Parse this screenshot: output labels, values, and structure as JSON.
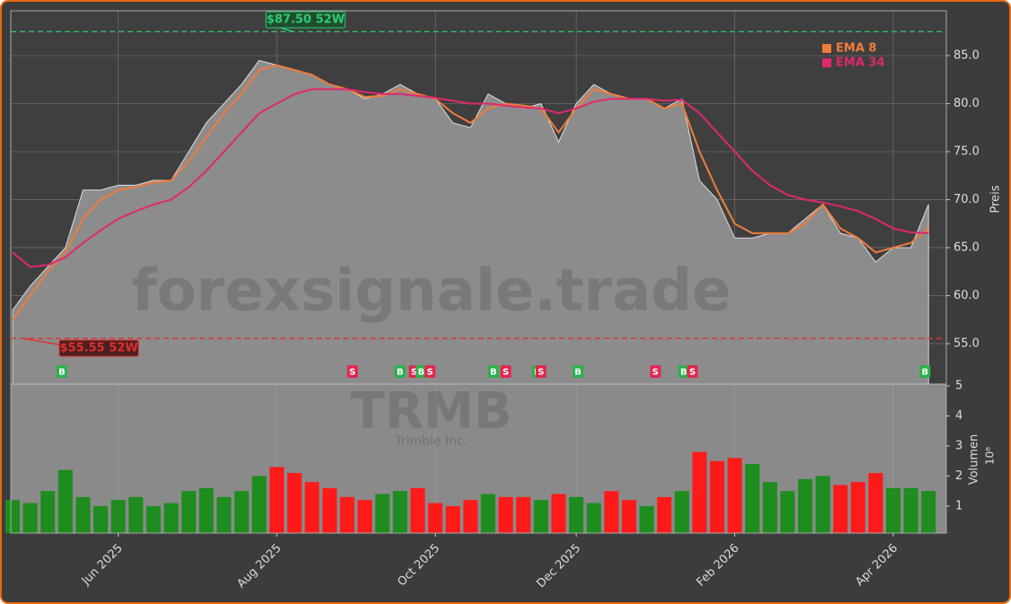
{
  "chart_data": {
    "type": "price-volume",
    "watermark": "forexsignale.trade",
    "ticker": "TRMB",
    "company": "Trimble Inc.",
    "categories": [
      null,
      null,
      null,
      null,
      null,
      null,
      "Jun 2025",
      null,
      null,
      null,
      null,
      null,
      null,
      null,
      null,
      "Aug 2025",
      null,
      null,
      null,
      null,
      null,
      null,
      null,
      null,
      "Oct 2025",
      null,
      null,
      null,
      null,
      null,
      null,
      null,
      "Dec 2025",
      null,
      null,
      null,
      null,
      null,
      null,
      null,
      null,
      "Feb 2026",
      null,
      null,
      null,
      null,
      null,
      null,
      null,
      null,
      "Apr 2026",
      null,
      null
    ],
    "series": [
      {
        "name": "Preis",
        "color": "#8c8c8c",
        "values": [
          58.5,
          61,
          63,
          65,
          71,
          71,
          71.5,
          71.5,
          72,
          72,
          75,
          78,
          80,
          82,
          84.5,
          84,
          83.5,
          83,
          82,
          81.5,
          80.5,
          81,
          82,
          81,
          80.5,
          78,
          77.5,
          81,
          80,
          79.5,
          80,
          76,
          80,
          82,
          81,
          80.5,
          80.5,
          79.5,
          80.5,
          72,
          70,
          66,
          66,
          66.5,
          66.5,
          68,
          69.5,
          66.5,
          66,
          63.5,
          65,
          65,
          69.5
        ]
      },
      {
        "name": "EMA 8",
        "color": "#f07c3c",
        "values": [
          57.5,
          60,
          62.5,
          64.5,
          68,
          70,
          71,
          71.3,
          71.8,
          72,
          74,
          76.5,
          79,
          81,
          83.5,
          84,
          83.5,
          83,
          82,
          81.5,
          80.7,
          80.8,
          81.5,
          81,
          80.5,
          79,
          78,
          79.5,
          80,
          79.8,
          79.5,
          77,
          79.5,
          81.5,
          81,
          80.5,
          80.5,
          79.5,
          80,
          75,
          71,
          67.5,
          66.5,
          66.5,
          66.5,
          67.5,
          69.5,
          67,
          66,
          64.5,
          65,
          65.5,
          67
        ]
      },
      {
        "name": "EMA 34",
        "color": "#e0286e",
        "values": [
          64.5,
          63,
          63.2,
          64,
          65.5,
          66.8,
          68,
          68.8,
          69.5,
          70,
          71.3,
          73,
          75,
          77,
          79,
          80,
          81,
          81.5,
          81.5,
          81.5,
          81.2,
          81,
          81,
          80.8,
          80.6,
          80.3,
          80,
          80,
          79.8,
          79.6,
          79.5,
          79,
          79.5,
          80.2,
          80.5,
          80.5,
          80.5,
          80.3,
          80.4,
          79,
          77,
          75,
          73,
          71.5,
          70.5,
          70,
          69.7,
          69.3,
          68.8,
          68,
          67,
          66.6,
          66.5
        ]
      }
    ],
    "volume": {
      "values": [
        1.2,
        1.1,
        1.5,
        2.2,
        1.3,
        1.0,
        1.2,
        1.3,
        1.0,
        1.1,
        1.5,
        1.6,
        1.3,
        1.5,
        2.0,
        2.3,
        2.1,
        1.8,
        1.6,
        1.3,
        1.2,
        1.4,
        1.5,
        1.6,
        1.1,
        1.0,
        1.2,
        1.4,
        1.3,
        1.3,
        1.2,
        1.4,
        1.3,
        1.1,
        1.5,
        1.2,
        1.0,
        1.3,
        1.5,
        2.8,
        2.5,
        2.6,
        2.4,
        1.8,
        1.5,
        1.9,
        2.0,
        1.7,
        1.8,
        2.1,
        1.6,
        1.6,
        1.5
      ],
      "up_color": "#1e8c1e",
      "down_color": "#ff1a1a"
    },
    "ylabel": "Preis",
    "ylim": [
      50.79,
      89.67
    ],
    "yticks": [
      {
        "value": 55,
        "label": "55.0"
      },
      {
        "value": 60,
        "label": "60.0"
      },
      {
        "value": 65,
        "label": "65.0"
      },
      {
        "value": 70,
        "label": "70.0"
      },
      {
        "value": 75,
        "label": "75.0"
      },
      {
        "value": 80,
        "label": "80.0"
      },
      {
        "value": 85,
        "label": "85.0"
      }
    ],
    "y2label": "Volumen",
    "y2scale": "10⁶",
    "y2lim": [
      0.1,
      5.06
    ],
    "y2ticks": [
      1,
      2,
      3,
      4,
      5
    ],
    "grid": true,
    "high": {
      "value": 87.5,
      "label": "$87.50 52W",
      "color": "#2ecc71"
    },
    "low": {
      "value": 55.55,
      "label": "$55.55 52W",
      "color": "#e03030"
    },
    "signals": [
      {
        "x": 2.8,
        "label": "B"
      },
      {
        "x": 19.3,
        "label": "S"
      },
      {
        "x": 22,
        "label": "B"
      },
      {
        "x": 22.8,
        "label": "S"
      },
      {
        "x": 23.2,
        "label": "B"
      },
      {
        "x": 23.7,
        "label": "S"
      },
      {
        "x": 27.3,
        "label": "B"
      },
      {
        "x": 28,
        "label": "S"
      },
      {
        "x": 29.8,
        "label": "B"
      },
      {
        "x": 30,
        "label": "S"
      },
      {
        "x": 32.1,
        "label": "B"
      },
      {
        "x": 36.5,
        "label": "S"
      },
      {
        "x": 38.1,
        "label": "B"
      },
      {
        "x": 38.6,
        "label": "S"
      },
      {
        "x": 51.8,
        "label": "B"
      }
    ],
    "legend": "upper right"
  }
}
